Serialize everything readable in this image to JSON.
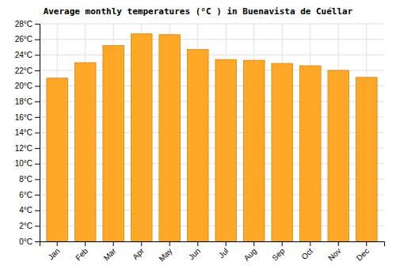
{
  "chart_data": {
    "type": "bar",
    "title": "Average monthly temperatures (°C ) in Buenavista de Cuéllar",
    "categories": [
      "Jan",
      "Feb",
      "Mar",
      "Apr",
      "May",
      "Jun",
      "Jul",
      "Aug",
      "Sep",
      "Oct",
      "Nov",
      "Dec"
    ],
    "values": [
      21.0,
      23.0,
      25.2,
      26.7,
      26.6,
      24.7,
      23.4,
      23.3,
      22.9,
      22.6,
      22.0,
      21.1
    ],
    "color": "#FFA726",
    "ylim": [
      0,
      28
    ],
    "yticks": [
      {
        "value": 0,
        "label": "0°C"
      },
      {
        "value": 2,
        "label": "2°C"
      },
      {
        "value": 4,
        "label": "4°C"
      },
      {
        "value": 6,
        "label": "6°C"
      },
      {
        "value": 8,
        "label": "8°C"
      },
      {
        "value": 10,
        "label": "10°C"
      },
      {
        "value": 12,
        "label": "12°C"
      },
      {
        "value": 14,
        "label": "14°C"
      },
      {
        "value": 16,
        "label": "16°C"
      },
      {
        "value": 18,
        "label": "18°C"
      },
      {
        "value": 20,
        "label": "20°C"
      },
      {
        "value": 22,
        "label": "22°C"
      },
      {
        "value": 24,
        "label": "24°C"
      },
      {
        "value": 26,
        "label": "26°C"
      },
      {
        "value": 28,
        "label": "28°C"
      }
    ],
    "grid": true
  }
}
